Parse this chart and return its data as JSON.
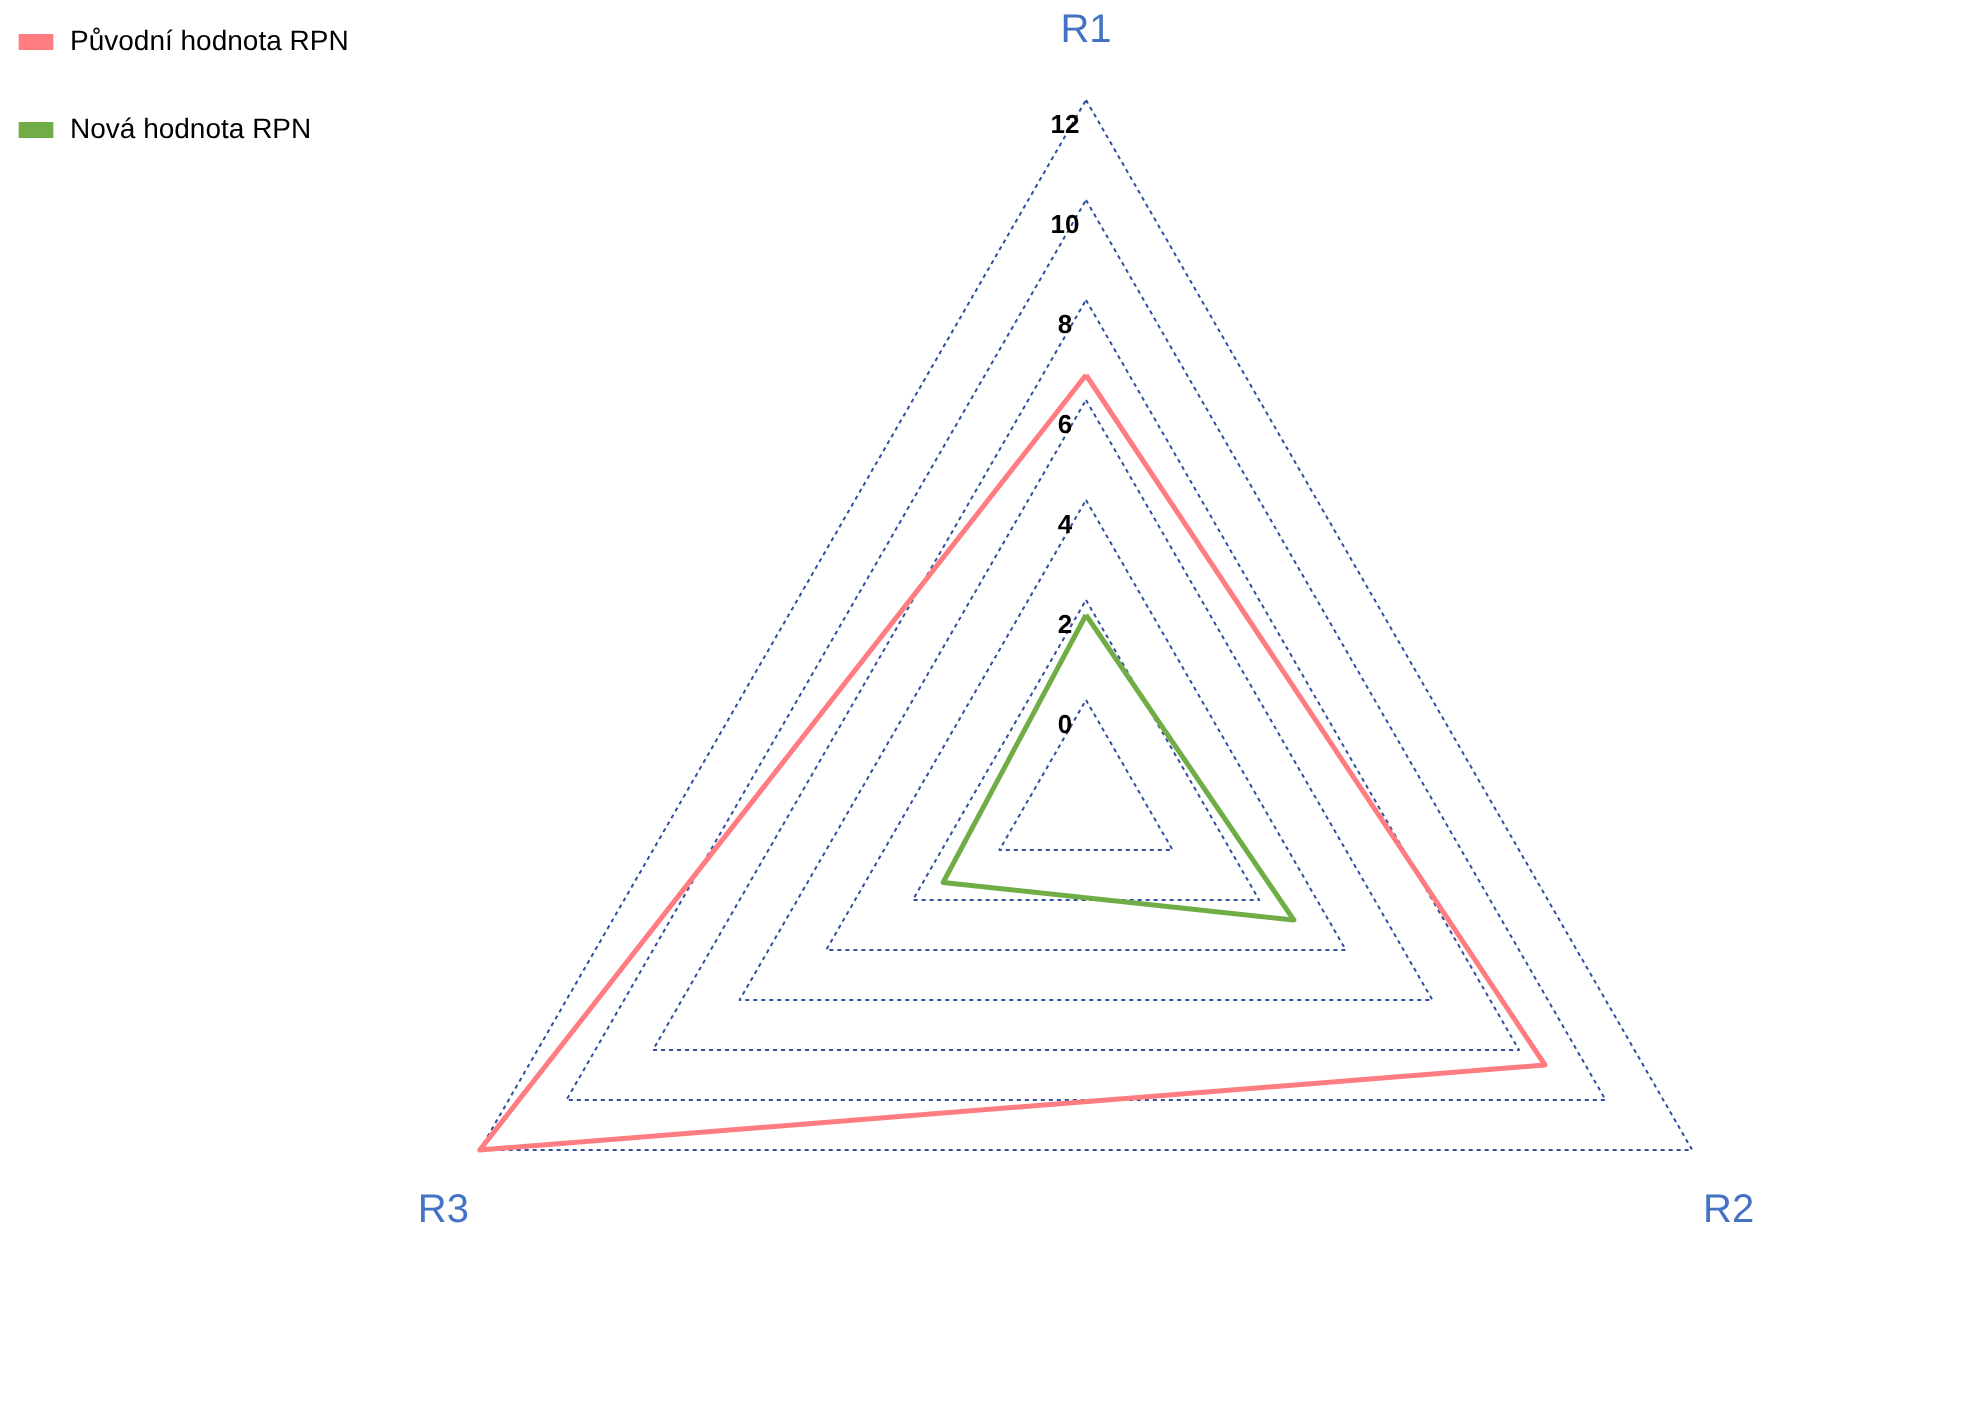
{
  "chart_data": {
    "type": "radar",
    "categories": [
      "R1",
      "R2",
      "R3"
    ],
    "series": [
      {
        "name": "Původní hodnota RPN",
        "color": "#ff7c80",
        "values": [
          6.5,
          8.6,
          12
        ]
      },
      {
        "name": "Nová hodnota RPN",
        "color": "#70ad47",
        "values": [
          1.7,
          2.8,
          1.3
        ]
      }
    ],
    "ylim": [
      -2,
      12
    ],
    "yticks": [
      0,
      2,
      4,
      6,
      8,
      10,
      12
    ],
    "grid": true,
    "legend": "left"
  }
}
